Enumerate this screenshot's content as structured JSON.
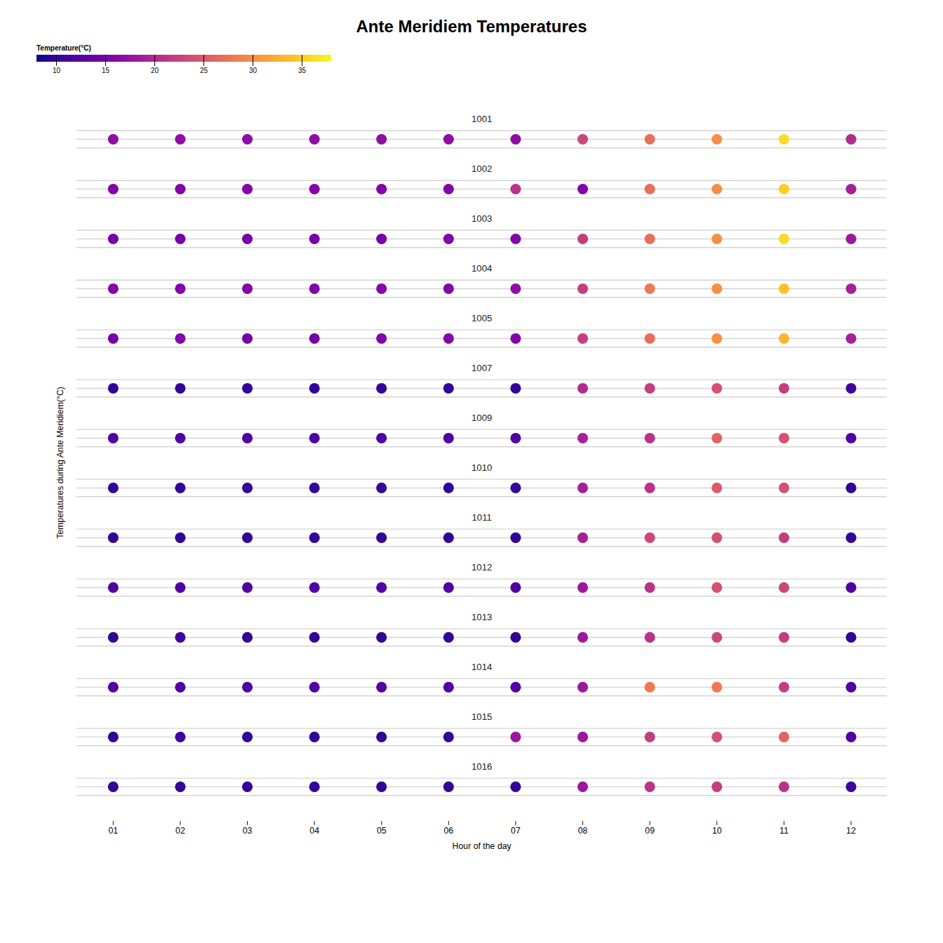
{
  "chart_data": {
    "type": "dot_strip",
    "title": "Ante Meridiem Temperatures",
    "xlabel": "Hour of the day",
    "ylabel": "Temperatures during Ante Meridiem(°C)",
    "tick_labels": "x",
    "categories": [
      "01",
      "02",
      "03",
      "04",
      "05",
      "06",
      "07",
      "08",
      "09",
      "10",
      "11",
      "12"
    ],
    "series": [
      {
        "name": "1001",
        "values": [
          17,
          17,
          17,
          17,
          17,
          17,
          17,
          23,
          27,
          30,
          36,
          20
        ]
      },
      {
        "name": "1002",
        "values": [
          16,
          16,
          16,
          16,
          16,
          16,
          21,
          16,
          27,
          30,
          35,
          19
        ]
      },
      {
        "name": "1003",
        "values": [
          15,
          15,
          15,
          15,
          15,
          16,
          16,
          22,
          27,
          30,
          36,
          18
        ]
      },
      {
        "name": "1004",
        "values": [
          16,
          16,
          16,
          16,
          16,
          16,
          17,
          22,
          28,
          30,
          34,
          19
        ]
      },
      {
        "name": "1005",
        "values": [
          15,
          16,
          15,
          15,
          16,
          16,
          16,
          22,
          27,
          30,
          33,
          19
        ]
      },
      {
        "name": "1007",
        "values": [
          10,
          10,
          10,
          10,
          10,
          10,
          10,
          20,
          22,
          24,
          22,
          11
        ]
      },
      {
        "name": "1009",
        "values": [
          12,
          12,
          12,
          12,
          12,
          12,
          12,
          19,
          21,
          26,
          24,
          12
        ]
      },
      {
        "name": "1010",
        "values": [
          10,
          10,
          10,
          10,
          10,
          10,
          10,
          19,
          21,
          25,
          24,
          10
        ]
      },
      {
        "name": "1011",
        "values": [
          10,
          10,
          10,
          10,
          10,
          10,
          10,
          19,
          23,
          24,
          22,
          10
        ]
      },
      {
        "name": "1012",
        "values": [
          12,
          12,
          12,
          12,
          12,
          12,
          12,
          18,
          21,
          24,
          23,
          12
        ]
      },
      {
        "name": "1013",
        "values": [
          10,
          11,
          10,
          10,
          10,
          10,
          10,
          18,
          21,
          23,
          22,
          10
        ]
      },
      {
        "name": "1014",
        "values": [
          12,
          12,
          12,
          12,
          12,
          12,
          12,
          18,
          28,
          28,
          22,
          12
        ]
      },
      {
        "name": "1015",
        "values": [
          10,
          11,
          10,
          10,
          10,
          10,
          18,
          18,
          22,
          24,
          26,
          12
        ]
      },
      {
        "name": "1016",
        "values": [
          10,
          10,
          10,
          10,
          10,
          10,
          10,
          18,
          21,
          22,
          21,
          11
        ]
      }
    ],
    "colorbar_label": "Temperature(°C)",
    "colorbar_range": [
      8,
      38
    ],
    "colorbar_ticks": [
      10,
      15,
      20,
      25,
      30,
      35
    ]
  }
}
